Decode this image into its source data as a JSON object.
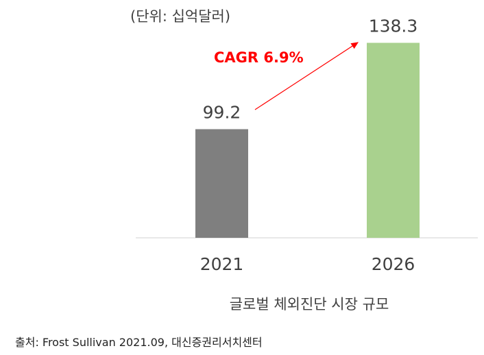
{
  "chart_data": {
    "type": "bar",
    "title": "글로벌 체외진단 시장 규모",
    "unit_label": "(단위: 십억달러)",
    "categories": [
      "2021",
      "2026"
    ],
    "values": [
      99.2,
      138.3
    ],
    "data_labels": [
      "99.2",
      "138.3"
    ],
    "colors": [
      "#7f7f7f",
      "#a9d18e"
    ],
    "annotation": {
      "text": "CAGR 6.9%",
      "color": "#ff0000"
    },
    "ylim": [
      50,
      140
    ],
    "grid": false,
    "xlabel": "",
    "ylabel": ""
  },
  "source": "출처: Frost Sullivan 2021.09, 대신증권리서치센터"
}
